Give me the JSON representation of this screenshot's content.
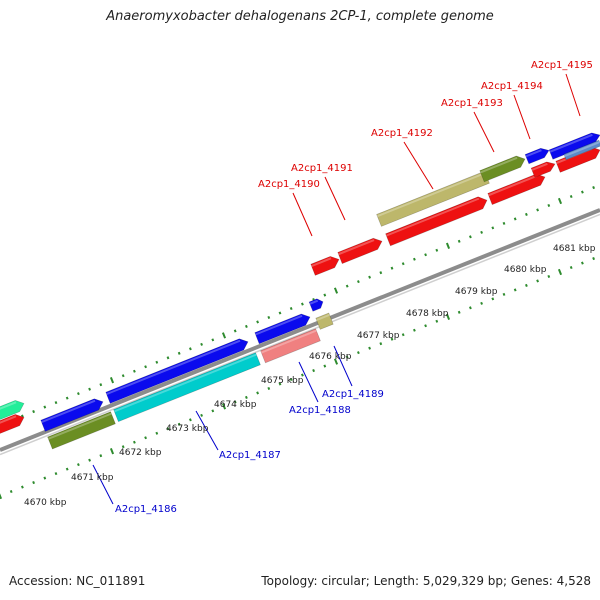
{
  "title": "Anaeromyxobacter dehalogenans 2CP-1, complete genome",
  "footer": {
    "accession": "Accession: NC_011891",
    "summary": "Topology: circular; Length: 5,029,329 bp; Genes: 4,528"
  },
  "colors": {
    "background": "#ffffff",
    "backbone": "#999999",
    "tick": "#2e8b2e",
    "blue_gene": "#0a0aee",
    "red_gene": "#ee1111",
    "olive_gene": "#6b8e23",
    "khaki_gene": "#bdb76b",
    "cyan_gene": "#00cccc",
    "pink_gene": "#f08080",
    "label_red": "#dd0000",
    "label_blue": "#0000cc"
  },
  "scale_labels": [
    {
      "label": "4670 kbp"
    },
    {
      "label": "4671 kbp"
    },
    {
      "label": "4672 kbp"
    },
    {
      "label": "4673 kbp"
    },
    {
      "label": "4674 kbp"
    },
    {
      "label": "4675 kbp"
    },
    {
      "label": "4676 kbp"
    },
    {
      "label": "4677 kbp"
    },
    {
      "label": "4678 kbp"
    },
    {
      "label": "4679 kbp"
    },
    {
      "label": "4680 kbp"
    },
    {
      "label": "4681 kbp"
    }
  ],
  "gene_labels_top": [
    {
      "label": "A2cp1_4190"
    },
    {
      "label": "A2cp1_4191"
    },
    {
      "label": "A2cp1_4192"
    },
    {
      "label": "A2cp1_4193"
    },
    {
      "label": "A2cp1_4194"
    },
    {
      "label": "A2cp1_4195"
    }
  ],
  "gene_labels_bottom": [
    {
      "label": "A2cp1_4186"
    },
    {
      "label": "A2cp1_4187"
    },
    {
      "label": "A2cp1_4188"
    },
    {
      "label": "A2cp1_4189"
    }
  ]
}
